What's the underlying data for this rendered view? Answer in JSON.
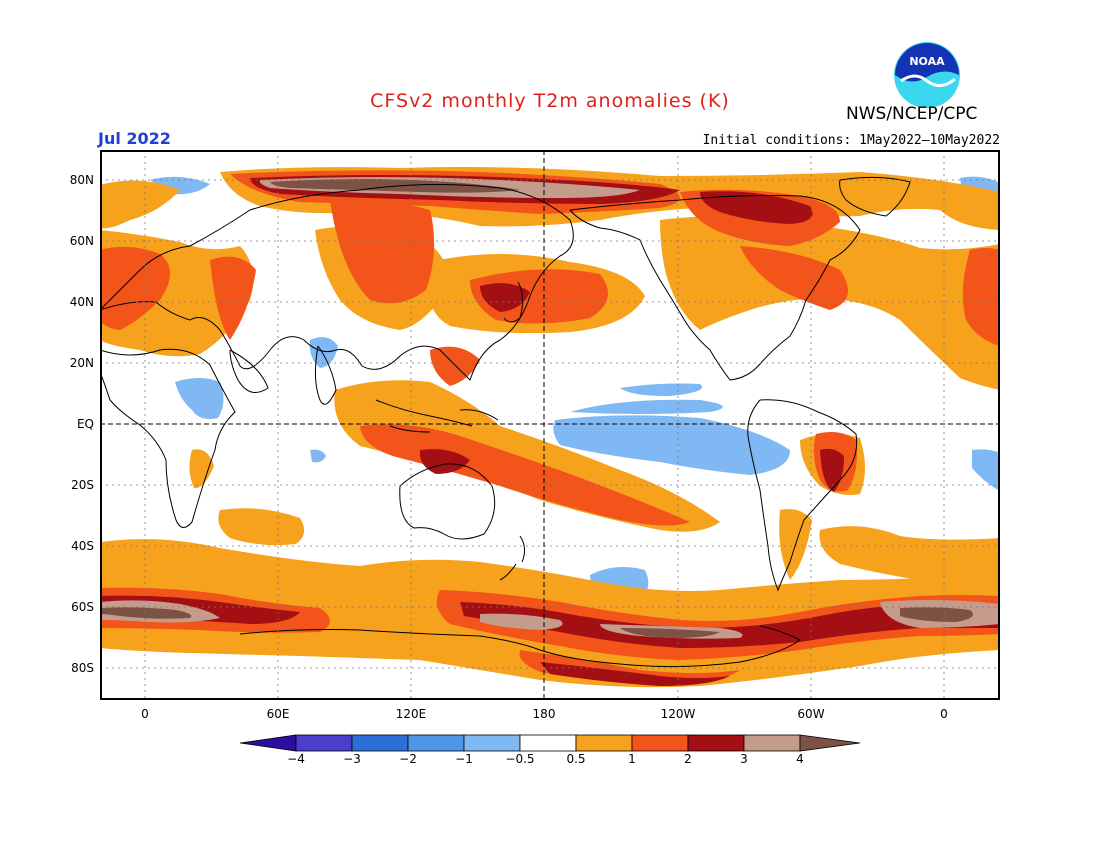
{
  "header": {
    "title": "CFSv2 monthly T2m anomalies (K)",
    "agency": "NWS/NCEP/CPC",
    "period": "Jul 2022",
    "initial_conditions": "Initial conditions: 1May2022—10May2022",
    "logo_text": "NOAA"
  },
  "map": {
    "lat_labels": [
      "80N",
      "60N",
      "40N",
      "20N",
      "EQ",
      "20S",
      "40S",
      "60S",
      "80S"
    ],
    "lon_labels": [
      "0",
      "60E",
      "120E",
      "180",
      "120W",
      "60W",
      "0"
    ]
  },
  "colorbar": {
    "labels": [
      "−4",
      "−3",
      "−2",
      "−1",
      "−0.5",
      "0.5",
      "1",
      "2",
      "3",
      "4"
    ],
    "colors": [
      "#2b0ea0",
      "#4b3ecc",
      "#2d6fd9",
      "#4e97e8",
      "#7fb8f3",
      "#ffffff",
      "#f6a21c",
      "#f2541a",
      "#a30f12",
      "#c59b8c",
      "#7b5243"
    ]
  },
  "colors": {
    "title": "#e0201a",
    "period": "#1f3fd6",
    "warm_05_1": "#f6a21c",
    "warm_1_2": "#f2541a",
    "warm_2_3": "#a30f12",
    "warm_3_4": "#c59b8c",
    "warm_4plus": "#7b5243",
    "cool_05_1": "#7fb8f3"
  }
}
